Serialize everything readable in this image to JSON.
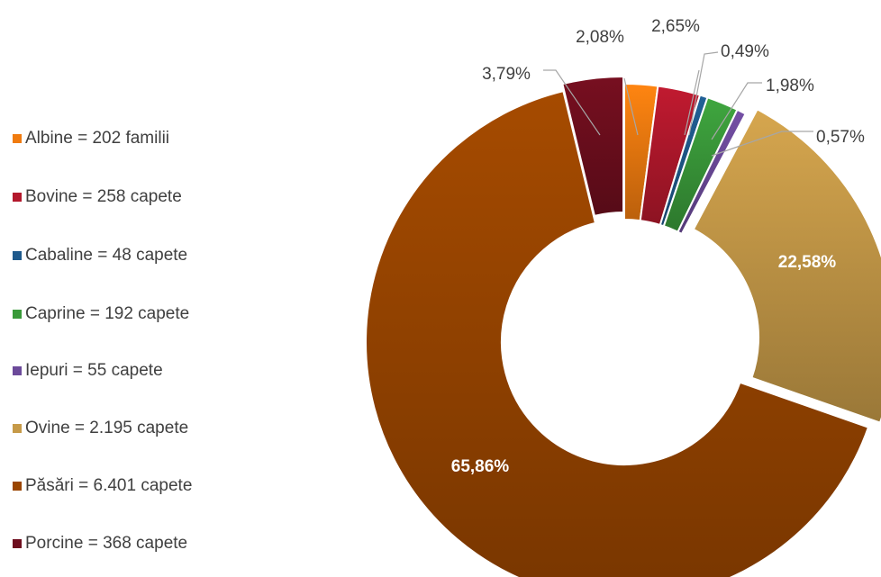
{
  "chart_data": {
    "type": "pie",
    "donut": true,
    "series": [
      {
        "label": "Albine = 202 familii",
        "percent": "2,08%",
        "value": 2.08,
        "color": "#F07B10"
      },
      {
        "label": "Bovine = 258 capete",
        "percent": "2,65%",
        "value": 2.65,
        "color": "#B3182C"
      },
      {
        "label": "Cabaline = 48 capete",
        "percent": "0,49%",
        "value": 0.49,
        "color": "#1F5A8C"
      },
      {
        "label": "Caprine = 192 capete",
        "percent": "1,98%",
        "value": 1.98,
        "color": "#3A9A3A"
      },
      {
        "label": "Iepuri = 55 capete",
        "percent": "0,57%",
        "value": 0.57,
        "color": "#6C4A9A"
      },
      {
        "label": "Ovine = 2.195 capete",
        "percent": "22,58%",
        "value": 22.58,
        "color": "#C69A48"
      },
      {
        "label": "Păsări = 6.401 capete",
        "percent": "65,86%",
        "value": 65.86,
        "color": "#9A4500"
      },
      {
        "label": "Porcine = 368 capete",
        "percent": "3,79%",
        "value": 3.79,
        "color": "#6E0E1E"
      }
    ],
    "legend_position": "left"
  }
}
